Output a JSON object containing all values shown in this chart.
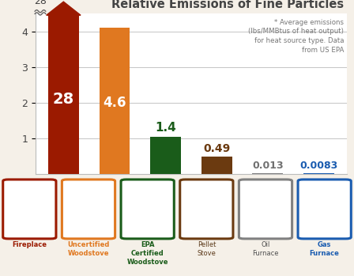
{
  "categories": [
    "Fireplace",
    "Uncertified\nWoodstove",
    "EPA\nCertified\nWoodstove",
    "Pellet\nStove",
    "Oil\nFurnace",
    "Gas\nFurnace"
  ],
  "values": [
    4.5,
    4.1,
    1.05,
    0.49,
    0.013,
    0.0083
  ],
  "real_values": [
    "28",
    "4.6",
    "1.4",
    "0.49",
    "0.013",
    "0.0083"
  ],
  "bar_colors": [
    "#9B1A00",
    "#E07820",
    "#1A5C1A",
    "#6B3A10",
    "#808080",
    "#1A5CB0"
  ],
  "label_colors": [
    "#FFFFFF",
    "#FFFFFF",
    "#1A5C1A",
    "#6B3A10",
    "#707070",
    "#1A5CB0"
  ],
  "title": "Relative Emissions of Fine Particles",
  "annotation": "* Average emissions\n(lbs/MMBtus of heat output)\nfor heat source type. Data\nfrom US EPA",
  "ylim_display": [
    0,
    4.5
  ],
  "yticks": [
    1,
    2,
    3,
    4
  ],
  "background_color": "#F5F0E8",
  "chart_bg": "#FFFFFF",
  "icon_border_colors": [
    "#9B1A00",
    "#E07820",
    "#1A5C1A",
    "#6B3A10",
    "#808080",
    "#1A5CB0"
  ],
  "label_name_colors": [
    "#9B1A00",
    "#E07820",
    "#1A5C1A",
    "#5C3A1A",
    "#505050",
    "#1A5CB0"
  ],
  "label_bold": [
    true,
    true,
    true,
    false,
    false,
    true
  ]
}
